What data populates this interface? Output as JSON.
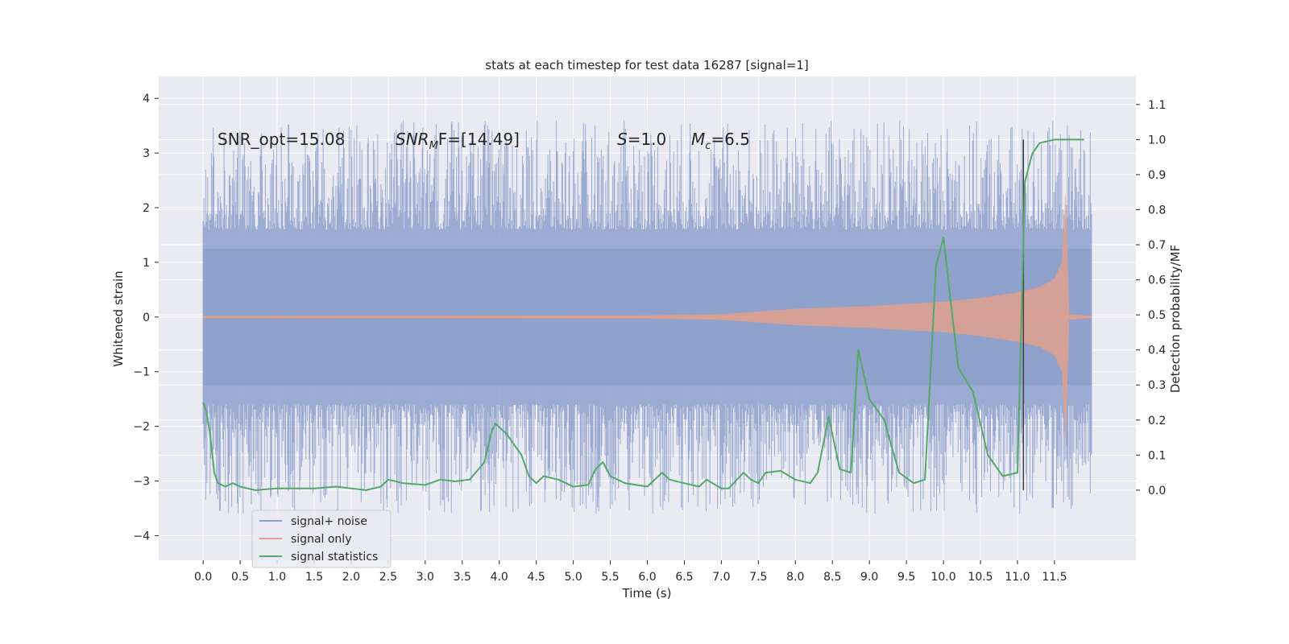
{
  "chart_data": {
    "type": "line",
    "title": "stats at each timestep for test data 16287 [signal=1]",
    "xlabel": "Time (s)",
    "ylabel_left": "Whitened strain",
    "ylabel_right": "Detection probability/MF",
    "xlim": [
      -0.6,
      12.6
    ],
    "ylim_left": [
      -4.45,
      4.4
    ],
    "ylim_right": [
      -0.2,
      1.18
    ],
    "x_ticks": [
      0.0,
      0.5,
      1.0,
      1.5,
      2.0,
      2.5,
      3.0,
      3.5,
      4.0,
      4.5,
      5.0,
      5.5,
      6.0,
      6.5,
      7.0,
      7.5,
      8.0,
      8.5,
      9.0,
      9.5,
      10.0,
      10.5,
      11.0,
      11.5
    ],
    "x_tick_labels": [
      "0.0",
      "0.5",
      "1.0",
      "1.5",
      "2.0",
      "2.5",
      "3.0",
      "3.5",
      "4.0",
      "4.5",
      "5.0",
      "5.5",
      "6.0",
      "6.5",
      "7.0",
      "7.5",
      "8.0",
      "8.5",
      "9.0",
      "9.5",
      "10.0",
      "10.5",
      "11.0",
      "11.5"
    ],
    "y_left_ticks": [
      -4,
      -3,
      -2,
      -1,
      0,
      1,
      2,
      3,
      4
    ],
    "y_left_tick_labels": [
      "−4",
      "−3",
      "−2",
      "−1",
      "0",
      "1",
      "2",
      "3",
      "4"
    ],
    "y_right_ticks": [
      0.0,
      0.1,
      0.2,
      0.3,
      0.4,
      0.5,
      0.6,
      0.7,
      0.8,
      0.9,
      1.0,
      1.1
    ],
    "y_right_tick_labels": [
      "0.0",
      "0.1",
      "0.2",
      "0.3",
      "0.4",
      "0.5",
      "0.6",
      "0.7",
      "0.8",
      "0.9",
      "1.0",
      "1.1"
    ],
    "grid": true,
    "legend_position": "lower-left",
    "annotations": {
      "snr_opt": "SNR_opt=15.08",
      "snr_mf_base": "SNR",
      "snr_mf_sub": "M",
      "snr_mf_rest": "F=[14.49]",
      "s_symbol": "S",
      "s_value": "=1.0",
      "mc_symbol": "M",
      "mc_sub": "c",
      "mc_value": "=6.5"
    },
    "marker_line_x": 11.08,
    "series": [
      {
        "name": "signal+ noise",
        "color": "#8da0cb",
        "axis": "left",
        "kind": "noise-band",
        "t_range": [
          0.0,
          12.0
        ],
        "inner_amplitude": 1.25,
        "peak_range": [
          -4.05,
          4.0
        ]
      },
      {
        "name": "signal only",
        "color": "#e5a08a",
        "axis": "left",
        "kind": "chirp-envelope",
        "points": [
          [
            0.0,
            0.02
          ],
          [
            6.0,
            0.03
          ],
          [
            7.0,
            0.05
          ],
          [
            8.0,
            0.15
          ],
          [
            9.0,
            0.2
          ],
          [
            10.0,
            0.28
          ],
          [
            10.5,
            0.35
          ],
          [
            11.0,
            0.45
          ],
          [
            11.3,
            0.55
          ],
          [
            11.5,
            0.7
          ],
          [
            11.6,
            1.0
          ],
          [
            11.65,
            2.3
          ],
          [
            11.7,
            0.05
          ],
          [
            12.0,
            0.02
          ]
        ]
      },
      {
        "name": "signal statistics",
        "color": "#55a868",
        "axis": "right",
        "kind": "line",
        "points": [
          [
            0.0,
            0.25
          ],
          [
            0.05,
            0.22
          ],
          [
            0.1,
            0.15
          ],
          [
            0.15,
            0.05
          ],
          [
            0.2,
            0.02
          ],
          [
            0.3,
            0.01
          ],
          [
            0.4,
            0.02
          ],
          [
            0.5,
            0.01
          ],
          [
            0.7,
            0.0
          ],
          [
            1.0,
            0.005
          ],
          [
            1.5,
            0.005
          ],
          [
            1.8,
            0.01
          ],
          [
            2.0,
            0.005
          ],
          [
            2.2,
            0.0
          ],
          [
            2.4,
            0.01
          ],
          [
            2.5,
            0.03
          ],
          [
            2.7,
            0.02
          ],
          [
            3.0,
            0.015
          ],
          [
            3.2,
            0.03
          ],
          [
            3.4,
            0.025
          ],
          [
            3.6,
            0.03
          ],
          [
            3.8,
            0.08
          ],
          [
            3.9,
            0.17
          ],
          [
            3.95,
            0.19
          ],
          [
            4.1,
            0.16
          ],
          [
            4.3,
            0.1
          ],
          [
            4.4,
            0.04
          ],
          [
            4.5,
            0.02
          ],
          [
            4.6,
            0.04
          ],
          [
            4.8,
            0.03
          ],
          [
            5.0,
            0.01
          ],
          [
            5.2,
            0.015
          ],
          [
            5.3,
            0.06
          ],
          [
            5.4,
            0.08
          ],
          [
            5.5,
            0.04
          ],
          [
            5.7,
            0.02
          ],
          [
            6.0,
            0.01
          ],
          [
            6.2,
            0.05
          ],
          [
            6.3,
            0.03
          ],
          [
            6.5,
            0.02
          ],
          [
            6.7,
            0.01
          ],
          [
            6.8,
            0.03
          ],
          [
            7.0,
            0.005
          ],
          [
            7.1,
            0.005
          ],
          [
            7.3,
            0.05
          ],
          [
            7.4,
            0.03
          ],
          [
            7.5,
            0.02
          ],
          [
            7.6,
            0.05
          ],
          [
            7.8,
            0.055
          ],
          [
            8.0,
            0.03
          ],
          [
            8.2,
            0.02
          ],
          [
            8.3,
            0.05
          ],
          [
            8.45,
            0.21
          ],
          [
            8.6,
            0.06
          ],
          [
            8.75,
            0.05
          ],
          [
            8.85,
            0.4
          ],
          [
            9.0,
            0.26
          ],
          [
            9.2,
            0.2
          ],
          [
            9.4,
            0.05
          ],
          [
            9.6,
            0.02
          ],
          [
            9.75,
            0.03
          ],
          [
            9.9,
            0.64
          ],
          [
            10.0,
            0.72
          ],
          [
            10.2,
            0.35
          ],
          [
            10.4,
            0.28
          ],
          [
            10.6,
            0.1
          ],
          [
            10.8,
            0.04
          ],
          [
            11.0,
            0.05
          ],
          [
            11.1,
            0.88
          ],
          [
            11.2,
            0.96
          ],
          [
            11.3,
            0.99
          ],
          [
            11.5,
            1.0
          ],
          [
            11.9,
            1.0
          ]
        ]
      }
    ]
  }
}
